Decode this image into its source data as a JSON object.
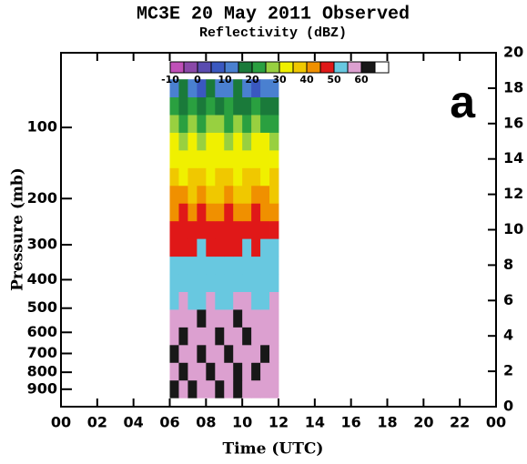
{
  "chart_data": {
    "type": "contour",
    "title": "MC3E  20 May 2011  Observed",
    "subtitle": "Reflectivity (dBZ)",
    "annotation": "a",
    "xlabel": "Time (UTC)",
    "ylabel": "Pressure (mb)",
    "xlim": [
      0,
      24
    ],
    "xticks": [
      {
        "value": 0,
        "label": "00"
      },
      {
        "value": 2,
        "label": "02"
      },
      {
        "value": 4,
        "label": "04"
      },
      {
        "value": 6,
        "label": "06"
      },
      {
        "value": 8,
        "label": "08"
      },
      10,
      12,
      14,
      16,
      18,
      20,
      22,
      {
        "value": 24,
        "label": "00"
      }
    ],
    "ylim": [
      0,
      20
    ],
    "yticks": [
      0,
      2,
      4,
      6,
      8,
      10,
      12,
      14,
      16,
      18,
      20
    ],
    "pressure_ticks": [
      100,
      200,
      300,
      400,
      500,
      600,
      700,
      800,
      900
    ],
    "levels": [
      -10,
      -5,
      0,
      5,
      10,
      15,
      20,
      25,
      30,
      35,
      40,
      45,
      50,
      55,
      60,
      65,
      70
    ],
    "colors": [
      "#c050b8",
      "#8a48a8",
      "#5a4cb0",
      "#3a58c0",
      "#4a80d0",
      "#1a7a3a",
      "#2aa040",
      "#98d040",
      "#f0f000",
      "#f0c800",
      "#f09000",
      "#e01818",
      "#68c8e0",
      "#dca0d0",
      "#181818",
      "#ffffff"
    ],
    "colorbar_ticks": [
      -10,
      0,
      10,
      20,
      30,
      40,
      50,
      60
    ],
    "x_edges": [
      6,
      6.5,
      7,
      7.5,
      8,
      8.5,
      9,
      9.5,
      10,
      10.5,
      11,
      11.5,
      12
    ],
    "y_edges": [
      0.5,
      1.5,
      2.5,
      3.5,
      4.5,
      5.5,
      6.5,
      7.5,
      8.5,
      9.5,
      10.5,
      11.5,
      12.5,
      13.5,
      14.5,
      15.5,
      16.5,
      17.5,
      18.5
    ],
    "z": [
      [
        62,
        57,
        62,
        57,
        57,
        62,
        57,
        62,
        57,
        57,
        57,
        57
      ],
      [
        57,
        62,
        57,
        57,
        62,
        57,
        57,
        62,
        57,
        62,
        57,
        57
      ],
      [
        62,
        57,
        57,
        62,
        57,
        57,
        62,
        57,
        57,
        57,
        62,
        57
      ],
      [
        57,
        62,
        57,
        57,
        57,
        62,
        57,
        57,
        62,
        57,
        57,
        57
      ],
      [
        57,
        57,
        57,
        62,
        57,
        57,
        57,
        62,
        57,
        57,
        57,
        57
      ],
      [
        52,
        57,
        52,
        52,
        57,
        52,
        52,
        57,
        57,
        52,
        52,
        57
      ],
      [
        52,
        52,
        52,
        52,
        52,
        52,
        52,
        52,
        52,
        52,
        52,
        52
      ],
      [
        52,
        52,
        52,
        52,
        52,
        52,
        52,
        52,
        52,
        52,
        52,
        52
      ],
      [
        47,
        47,
        47,
        52,
        47,
        47,
        47,
        47,
        52,
        47,
        52,
        52
      ],
      [
        47,
        47,
        47,
        47,
        47,
        47,
        47,
        47,
        47,
        47,
        47,
        47
      ],
      [
        42,
        47,
        42,
        47,
        42,
        42,
        47,
        42,
        42,
        47,
        42,
        42
      ],
      [
        42,
        42,
        37,
        42,
        37,
        37,
        42,
        37,
        37,
        42,
        42,
        37
      ],
      [
        37,
        32,
        37,
        37,
        32,
        37,
        37,
        32,
        37,
        37,
        32,
        37
      ],
      [
        32,
        32,
        32,
        32,
        32,
        32,
        32,
        32,
        32,
        32,
        32,
        32
      ],
      [
        32,
        27,
        32,
        27,
        32,
        32,
        27,
        32,
        27,
        32,
        32,
        27
      ],
      [
        27,
        22,
        27,
        22,
        27,
        27,
        22,
        27,
        22,
        27,
        22,
        22
      ],
      [
        22,
        17,
        22,
        17,
        22,
        17,
        22,
        17,
        17,
        22,
        17,
        17
      ],
      [
        12,
        17,
        12,
        7,
        17,
        12,
        12,
        17,
        12,
        7,
        12,
        12
      ]
    ]
  }
}
